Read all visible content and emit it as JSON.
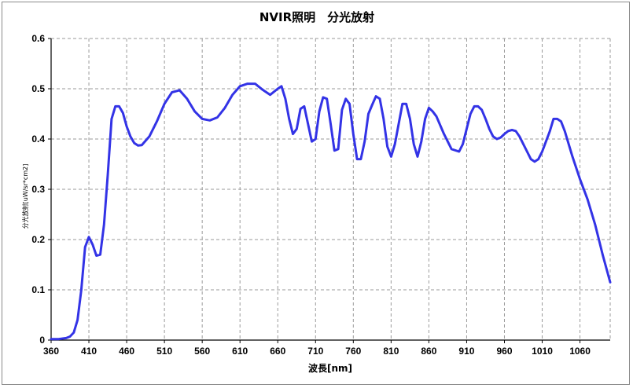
{
  "chart_data": {
    "type": "line",
    "title": "NVIR照明　分光放射",
    "xlabel": "波長[nm]",
    "ylabel": "分光放射[uW/sr*cm2]",
    "xlim": [
      360,
      1100
    ],
    "ylim": [
      0,
      0.6
    ],
    "x_ticks": [
      "360",
      "410",
      "460",
      "510",
      "560",
      "610",
      "660",
      "710",
      "760",
      "810",
      "860",
      "910",
      "960",
      "1010",
      "1060"
    ],
    "y_ticks": [
      "0",
      "0.1",
      "0.2",
      "0.3",
      "0.4",
      "0.5",
      "0.6"
    ],
    "grid": true,
    "line_color": "#3333e6",
    "series": [
      {
        "x": [
          360,
          370,
          380,
          385,
          390,
          395,
          400,
          405,
          410,
          415,
          420,
          425,
          430,
          435,
          440,
          445,
          450,
          455,
          460,
          465,
          470,
          475,
          480,
          490,
          500,
          510,
          520,
          530,
          540,
          550,
          560,
          570,
          580,
          590,
          600,
          610,
          620,
          630,
          640,
          650,
          660,
          665,
          670,
          675,
          680,
          685,
          690,
          695,
          700,
          705,
          710,
          715,
          720,
          725,
          730,
          735,
          740,
          745,
          750,
          755,
          760,
          765,
          770,
          775,
          780,
          785,
          790,
          795,
          800,
          805,
          810,
          815,
          820,
          825,
          830,
          835,
          840,
          845,
          850,
          855,
          860,
          865,
          870,
          880,
          890,
          900,
          905,
          910,
          915,
          920,
          925,
          930,
          935,
          940,
          945,
          950,
          955,
          960,
          965,
          970,
          975,
          980,
          985,
          990,
          995,
          1000,
          1005,
          1010,
          1015,
          1020,
          1025,
          1030,
          1035,
          1040,
          1050,
          1060,
          1070,
          1080,
          1090,
          1100
        ],
        "y": [
          0.002,
          0.002,
          0.004,
          0.007,
          0.015,
          0.04,
          0.1,
          0.185,
          0.205,
          0.19,
          0.168,
          0.17,
          0.23,
          0.33,
          0.44,
          0.465,
          0.465,
          0.452,
          0.425,
          0.405,
          0.392,
          0.387,
          0.388,
          0.405,
          0.435,
          0.47,
          0.493,
          0.497,
          0.48,
          0.455,
          0.44,
          0.437,
          0.443,
          0.462,
          0.488,
          0.505,
          0.51,
          0.51,
          0.498,
          0.488,
          0.5,
          0.505,
          0.48,
          0.44,
          0.41,
          0.42,
          0.46,
          0.465,
          0.43,
          0.395,
          0.4,
          0.455,
          0.483,
          0.48,
          0.43,
          0.377,
          0.38,
          0.458,
          0.48,
          0.47,
          0.41,
          0.36,
          0.36,
          0.395,
          0.45,
          0.468,
          0.485,
          0.48,
          0.44,
          0.385,
          0.365,
          0.39,
          0.43,
          0.47,
          0.47,
          0.44,
          0.39,
          0.365,
          0.395,
          0.44,
          0.462,
          0.455,
          0.445,
          0.41,
          0.38,
          0.375,
          0.39,
          0.42,
          0.45,
          0.465,
          0.465,
          0.458,
          0.44,
          0.42,
          0.405,
          0.4,
          0.403,
          0.41,
          0.416,
          0.418,
          0.416,
          0.405,
          0.39,
          0.375,
          0.36,
          0.355,
          0.36,
          0.375,
          0.395,
          0.415,
          0.44,
          0.44,
          0.435,
          0.415,
          0.365,
          0.32,
          0.28,
          0.23,
          0.17,
          0.115
        ]
      }
    ]
  }
}
